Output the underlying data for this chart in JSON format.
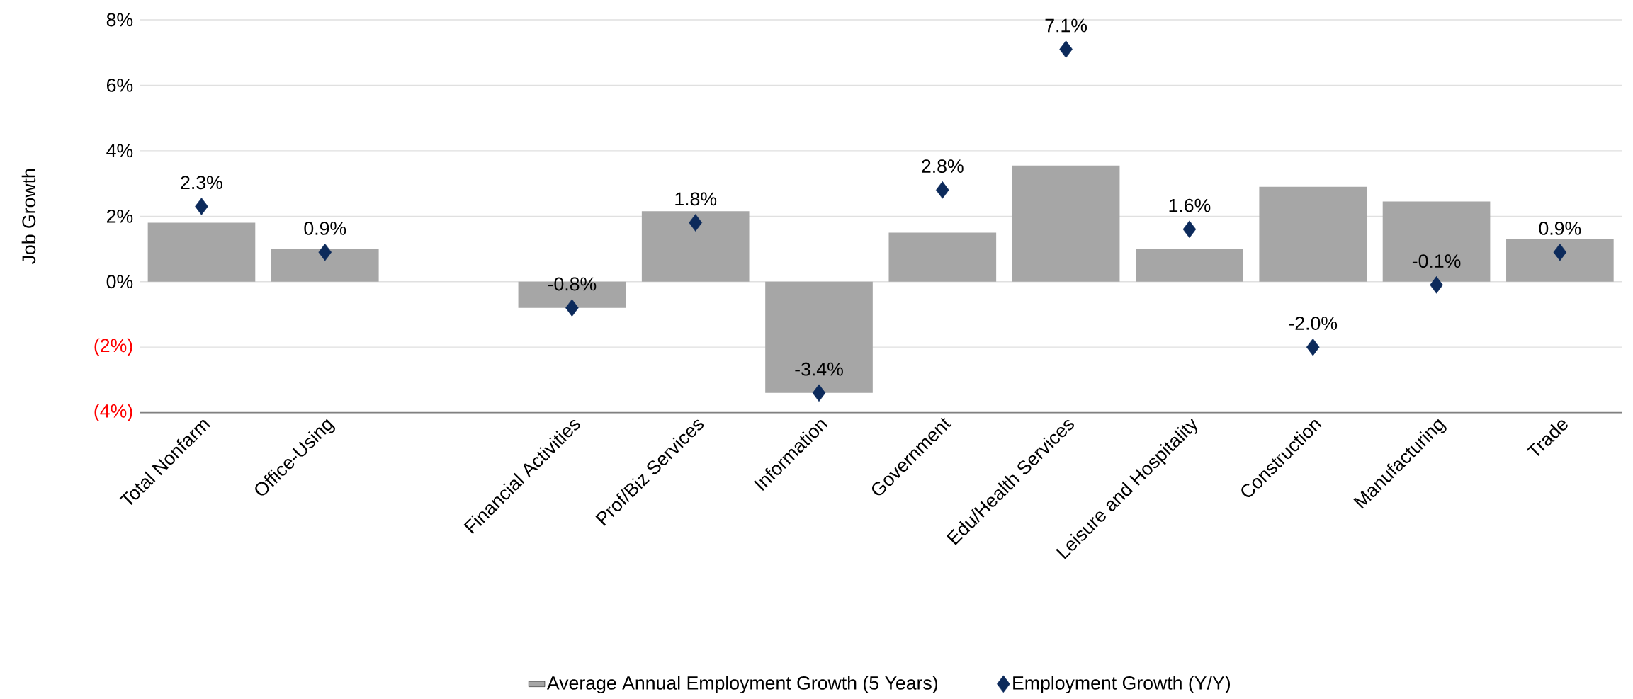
{
  "chart_data": {
    "type": "bar",
    "ylabel": "Job Growth",
    "categories": [
      "Total Nonfarm",
      "Office-Using",
      null,
      "Financial Activities",
      "Prof/Biz Services",
      "Information",
      "Government",
      "Edu/Health Services",
      "Leisure and Hospitality",
      "Construction",
      "Manufacturing",
      "Trade"
    ],
    "series": [
      {
        "name": "Average Annual Employment Growth (5 Years)",
        "color": "#a6a6a6",
        "values": [
          1.8,
          1.0,
          null,
          -0.8,
          2.15,
          -3.4,
          1.5,
          3.55,
          1.0,
          2.9,
          2.45,
          1.3
        ]
      },
      {
        "name": "Employment Growth (Y/Y)",
        "type": "scatter",
        "marker": "diamond",
        "color": "#0c2a5b",
        "values": [
          2.3,
          0.9,
          null,
          -0.8,
          1.8,
          -3.4,
          2.8,
          7.1,
          1.6,
          -2.0,
          -0.1,
          0.9
        ],
        "value_labels": [
          "2.3%",
          "0.9%",
          null,
          "-0.8%",
          "1.8%",
          "-3.4%",
          "2.8%",
          "7.1%",
          "1.6%",
          "-2.0%",
          "-0.1%",
          "0.9%"
        ]
      }
    ],
    "ylim": [
      -4,
      8
    ],
    "yticks": [
      {
        "value": -4,
        "label": "(4%)"
      },
      {
        "value": -2,
        "label": "(2%)"
      },
      {
        "value": 0,
        "label": "0%"
      },
      {
        "value": 2,
        "label": "2%"
      },
      {
        "value": 4,
        "label": "4%"
      },
      {
        "value": 6,
        "label": "6%"
      },
      {
        "value": 8,
        "label": "8%"
      }
    ],
    "grid": "y",
    "legend": "bottom"
  }
}
